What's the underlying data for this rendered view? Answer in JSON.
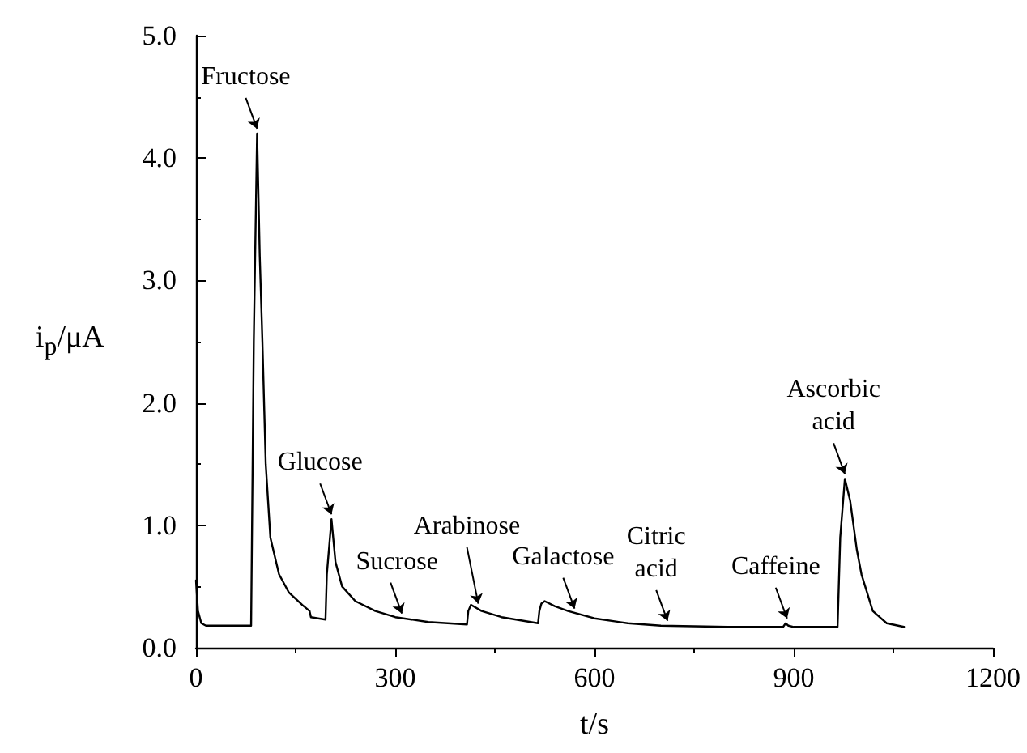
{
  "chart_data": {
    "type": "line",
    "xlabel": "t/s",
    "ylabel": "i$_{p}$/μA",
    "series": [
      {
        "color": "#000000",
        "x": [
          0,
          3,
          8,
          15,
          40,
          83,
          87,
          92,
          96,
          100,
          105,
          112,
          125,
          140,
          160,
          171,
          173,
          195,
          197,
          204,
          210,
          220,
          240,
          270,
          300,
          350,
          408,
          410,
          414,
          430,
          460,
          515,
          517,
          520,
          525,
          540,
          560,
          600,
          650,
          700,
          800,
          884,
          888,
          892,
          900,
          950,
          966,
          970,
          977,
          985,
          995,
          1002,
          1019,
          1040,
          1066
        ],
        "values": [
          0.55,
          0.3,
          0.2,
          0.18,
          0.18,
          0.18,
          2.5,
          4.2,
          3.2,
          2.5,
          1.5,
          0.9,
          0.6,
          0.45,
          0.35,
          0.3,
          0.25,
          0.23,
          0.6,
          1.05,
          0.7,
          0.5,
          0.38,
          0.3,
          0.25,
          0.21,
          0.19,
          0.3,
          0.35,
          0.3,
          0.25,
          0.2,
          0.3,
          0.36,
          0.38,
          0.34,
          0.3,
          0.24,
          0.2,
          0.18,
          0.17,
          0.17,
          0.2,
          0.18,
          0.17,
          0.17,
          0.17,
          0.9,
          1.38,
          1.2,
          0.8,
          0.6,
          0.3,
          0.2,
          0.17
        ]
      }
    ],
    "xlim": [
      0,
      1200
    ],
    "xticks": [
      0,
      300,
      600,
      900,
      1200
    ],
    "ylim": [
      0,
      5
    ],
    "yticks": [
      {
        "value": 0,
        "label": "0.0"
      },
      {
        "value": 1,
        "label": "1.0"
      },
      {
        "value": 2,
        "label": "2.0"
      },
      {
        "value": 3,
        "label": "3.0"
      },
      {
        "value": 4,
        "label": "4.0"
      },
      {
        "value": 5,
        "label": "5.0"
      }
    ],
    "grid": false,
    "marker": "none",
    "line_style": "solid",
    "annotations": [
      {
        "text": "Fructose",
        "x": 92,
        "y": 4.2
      },
      {
        "text": "Glucose",
        "x": 204,
        "y": 1.05
      },
      {
        "text": "Sucrose",
        "x": 310,
        "y": 0.24
      },
      {
        "text": "Arabinose",
        "x": 425,
        "y": 0.32
      },
      {
        "text": "Galactose",
        "x": 570,
        "y": 0.28
      },
      {
        "text": "Citric\nacid",
        "x": 710,
        "y": 0.18
      },
      {
        "text": "Caffeine",
        "x": 890,
        "y": 0.2
      },
      {
        "text": "Ascorbic\nacid",
        "x": 977,
        "y": 1.38
      }
    ]
  }
}
